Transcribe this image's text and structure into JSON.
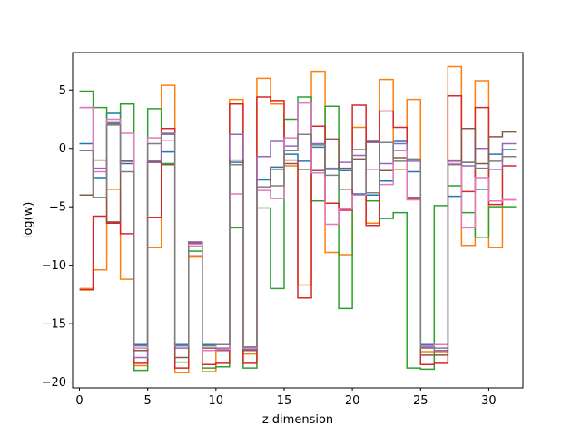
{
  "chart_data": {
    "type": "line",
    "step": "post",
    "xlabel": "z dimension",
    "ylabel": "log(w)",
    "xlim": [
      -0.5,
      32.5
    ],
    "ylim": [
      -20.5,
      8.2
    ],
    "xticks": [
      0,
      5,
      10,
      15,
      20,
      25,
      30
    ],
    "yticks": [
      5,
      0,
      -5,
      -10,
      -15,
      -20
    ],
    "grid": false,
    "series": [
      {
        "color": "#1f77b4",
        "values": [
          0.4,
          -2.5,
          3.0,
          -1.3,
          -16.8,
          -1.1,
          -0.3,
          -16.8,
          -8.2,
          -16.8,
          -16.8,
          -1.2,
          -17.0,
          -2.7,
          -1.6,
          -0.5,
          -1.1,
          0.1,
          -1.8,
          -1.9,
          -3.9,
          -4.0,
          -2.8,
          0.6,
          -2.0,
          -16.8,
          -16.8,
          -4.1,
          -1.2,
          -3.5,
          -0.5,
          -0.1
        ]
      },
      {
        "color": "#ff7f0e",
        "values": [
          -12.0,
          -10.4,
          -3.5,
          -11.2,
          -18.6,
          -8.5,
          5.4,
          -19.2,
          -9.3,
          -19.1,
          -17.2,
          4.2,
          -17.6,
          6.0,
          3.8,
          -1.5,
          -11.7,
          6.6,
          -8.9,
          -9.1,
          1.8,
          -6.4,
          5.9,
          -1.8,
          4.2,
          -17.4,
          -17.4,
          7.0,
          -8.3,
          5.8,
          -8.5,
          -4.4
        ]
      },
      {
        "color": "#2ca02c",
        "values": [
          4.9,
          3.5,
          2.1,
          3.8,
          -19.0,
          3.4,
          -1.3,
          -18.3,
          -8.8,
          -18.8,
          -18.7,
          -6.8,
          -18.8,
          -5.1,
          -12.0,
          2.5,
          4.4,
          -4.5,
          3.6,
          -13.7,
          -4.0,
          -4.5,
          -6.0,
          -5.5,
          -18.8,
          -18.9,
          -4.9,
          -3.2,
          -5.5,
          -7.6,
          -5.0,
          -5.0
        ]
      },
      {
        "color": "#d62728",
        "values": [
          -12.1,
          -5.8,
          -6.4,
          -7.3,
          -18.4,
          -5.9,
          1.7,
          -18.8,
          -9.2,
          -18.5,
          -18.4,
          3.8,
          -18.4,
          4.4,
          4.1,
          -1.0,
          -12.8,
          1.9,
          -4.7,
          -5.3,
          3.7,
          -6.6,
          3.2,
          1.8,
          -4.3,
          -18.5,
          -18.4,
          4.5,
          -3.7,
          3.5,
          -4.8,
          -1.5
        ]
      },
      {
        "color": "#9467bd",
        "values": [
          3.5,
          -1.7,
          2.2,
          -1.1,
          -17.9,
          -1.1,
          1.3,
          -17.1,
          -8.0,
          -17.3,
          -17.1,
          1.2,
          -17.2,
          -0.7,
          0.6,
          0.2,
          3.9,
          0.4,
          -1.7,
          -1.2,
          -0.6,
          0.5,
          -1.3,
          0.4,
          -1.1,
          -17.0,
          -17.3,
          -1.1,
          -1.5,
          0.0,
          -1.8,
          0.4
        ]
      },
      {
        "color": "#8c564b",
        "values": [
          -4.0,
          -1.0,
          -6.3,
          -1.1,
          -17.3,
          -1.2,
          -1.4,
          -17.9,
          -8.1,
          -17.1,
          -17.3,
          -1.0,
          -17.3,
          -3.3,
          -1.8,
          -1.3,
          -1.8,
          -1.9,
          0.8,
          -1.7,
          -0.9,
          0.6,
          -1.9,
          -0.8,
          -4.2,
          -17.7,
          -17.7,
          -1.0,
          1.7,
          -1.3,
          1.0,
          1.4
        ]
      },
      {
        "color": "#e377c2",
        "values": [
          3.5,
          -2.0,
          2.5,
          1.3,
          -17.1,
          0.9,
          0.7,
          -16.9,
          -8.2,
          -17.3,
          -17.2,
          -3.9,
          -17.1,
          -3.6,
          -4.3,
          0.9,
          3.9,
          -2.1,
          -6.5,
          -5.2,
          -4.0,
          -1.8,
          -3.1,
          -0.2,
          -4.4,
          -16.9,
          -16.8,
          -1.3,
          -6.8,
          -2.5,
          -4.5,
          -4.4
        ]
      },
      {
        "color": "#7f7f7f",
        "values": [
          -0.2,
          -4.2,
          2.0,
          -2.0,
          -16.9,
          0.4,
          1.2,
          -16.9,
          -8.4,
          -16.9,
          -16.8,
          -1.4,
          -17.0,
          -3.3,
          -3.2,
          -0.2,
          1.2,
          0.3,
          -2.3,
          -3.5,
          -0.1,
          -3.8,
          0.5,
          -1.1,
          -0.9,
          -17.1,
          -17.1,
          -1.4,
          -1.2,
          -1.7,
          -1.1,
          -0.7
        ]
      }
    ]
  }
}
